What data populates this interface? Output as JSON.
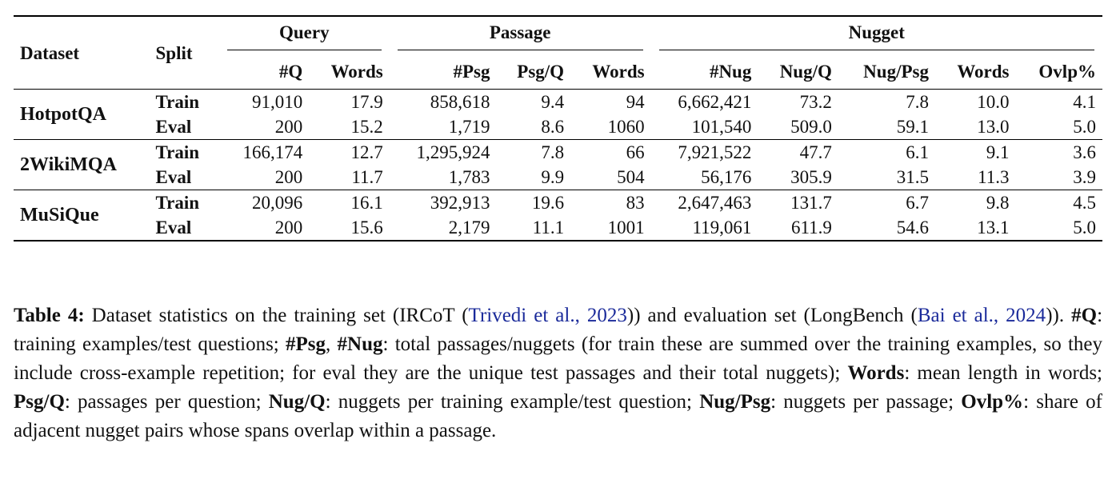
{
  "table": {
    "headers": {
      "dataset": "Dataset",
      "split": "Split",
      "groups": {
        "query": "Query",
        "passage": "Passage",
        "nugget": "Nugget"
      },
      "query_cols": [
        "#Q",
        "Words"
      ],
      "passage_cols": [
        "#Psg",
        "Psg/Q",
        "Words"
      ],
      "nugget_cols": [
        "#Nug",
        "Nug/Q",
        "Nug/Psg",
        "Words",
        "Ovlp%"
      ]
    },
    "datasets": [
      {
        "name": "HotpotQA",
        "rows": [
          [
            "Train",
            "91,010",
            "17.9",
            "858,618",
            "9.4",
            "94",
            "6,662,421",
            "73.2",
            "7.8",
            "10.0",
            "4.1"
          ],
          [
            "Eval",
            "200",
            "15.2",
            "1,719",
            "8.6",
            "1060",
            "101,540",
            "509.0",
            "59.1",
            "13.0",
            "5.0"
          ]
        ]
      },
      {
        "name": "2WikiMQA",
        "rows": [
          [
            "Train",
            "166,174",
            "12.7",
            "1,295,924",
            "7.8",
            "66",
            "7,921,522",
            "47.7",
            "6.1",
            "9.1",
            "3.6"
          ],
          [
            "Eval",
            "200",
            "11.7",
            "1,783",
            "9.9",
            "504",
            "56,176",
            "305.9",
            "31.5",
            "11.3",
            "3.9"
          ]
        ]
      },
      {
        "name": "MuSiQue",
        "rows": [
          [
            "Train",
            "20,096",
            "16.1",
            "392,913",
            "19.6",
            "83",
            "2,647,463",
            "131.7",
            "6.7",
            "9.8",
            "4.5"
          ],
          [
            "Eval",
            "200",
            "15.6",
            "2,179",
            "11.1",
            "1001",
            "119,061",
            "611.9",
            "54.6",
            "13.1",
            "5.0"
          ]
        ]
      }
    ]
  },
  "caption": {
    "label": "Table 4:",
    "p1": " Dataset statistics on the training set (IRCoT (",
    "cite1": "Trivedi et al., 2023",
    "p2": ")) and evaluation set (LongBench (",
    "cite2": "Bai et al., 2024",
    "p3": ")). ",
    "t_q": "#Q",
    "d_q": ": training examples/test questions; ",
    "t_psg": "#Psg",
    "sep": ", ",
    "t_nug": "#Nug",
    "d_psgnug": ": total passages/nuggets (for train these are summed over the training examples, so they include cross-example repetition; for eval they are the unique test passages and their total nuggets); ",
    "t_words": "Words",
    "d_words": ": mean length in words; ",
    "t_psgq": "Psg/Q",
    "d_psgq": ": passages per question; ",
    "t_nugq": "Nug/Q",
    "d_nugq": ": nuggets per training example/test question; ",
    "t_nugpsg": "Nug/Psg",
    "d_nugpsg": ": nuggets per passage; ",
    "t_ovlp": "Ovlp%",
    "d_ovlp": ": share of adjacent nugget pairs whose spans overlap within a passage."
  }
}
